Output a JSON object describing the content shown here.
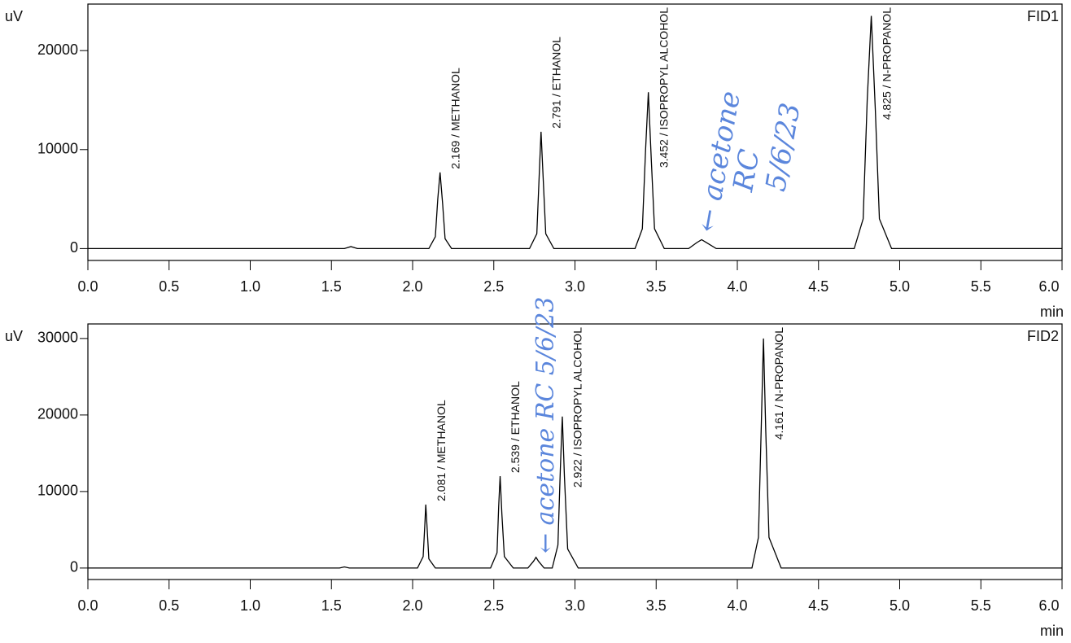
{
  "chart_data": [
    {
      "type": "line",
      "title": "FID1",
      "ylabel": "uV",
      "xlabel": "min",
      "color": "#000000",
      "xlim": [
        0,
        6
      ],
      "ylim": [
        -1200,
        24700
      ],
      "xticks": [
        {
          "value": 0,
          "label": "0.0"
        },
        0.5,
        {
          "value": 1,
          "label": "1.0"
        },
        1.5,
        {
          "value": 2,
          "label": "2.0"
        },
        2.5,
        {
          "value": 3,
          "label": "3.0"
        },
        3.5,
        {
          "value": 4,
          "label": "4.0"
        },
        4.5,
        {
          "value": 5,
          "label": "5.0"
        },
        5.5,
        {
          "value": 6,
          "label": "6.0"
        }
      ],
      "yticks": [
        0,
        10000,
        20000
      ],
      "x": [
        0,
        1.58,
        1.62,
        1.66,
        2.1,
        2.14,
        2.155,
        2.169,
        2.185,
        2.2,
        2.24,
        2.72,
        2.765,
        2.78,
        2.791,
        2.805,
        2.82,
        2.87,
        3.37,
        3.415,
        3.435,
        3.452,
        3.47,
        3.49,
        3.55,
        3.7,
        3.75,
        3.78,
        3.81,
        3.87,
        4.72,
        4.775,
        4.8,
        4.825,
        4.85,
        4.875,
        4.95,
        6
      ],
      "values": [
        0,
        0,
        200,
        0,
        0,
        1200,
        5000,
        7700,
        4500,
        1000,
        0,
        0,
        1500,
        7500,
        11800,
        6800,
        1500,
        0,
        0,
        2000,
        10000,
        15800,
        9000,
        2000,
        0,
        0,
        600,
        900,
        600,
        0,
        0,
        3000,
        15000,
        23500,
        14000,
        3000,
        0,
        0
      ],
      "peaks": [
        {
          "label": "2.169 / METHANOL",
          "x": 2.169,
          "y": 7700
        },
        {
          "label": "2.791 / ETHANOL",
          "x": 2.791,
          "y": 11800
        },
        {
          "label": "3.452 / ISOPROPYL ALCOHOL",
          "x": 3.452,
          "y": 15800
        },
        {
          "label": "4.825 / N-PROPANOL",
          "x": 4.825,
          "y": 23500
        }
      ],
      "notes": [
        "← acetone",
        "RC",
        "5/6/23"
      ]
    },
    {
      "type": "line",
      "title": "FID2",
      "ylabel": "uV",
      "xlabel": "min",
      "color": "#000000",
      "xlim": [
        0,
        6
      ],
      "ylim": [
        -1500,
        31900
      ],
      "xticks": [
        {
          "value": 0,
          "label": "0.0"
        },
        0.5,
        {
          "value": 1,
          "label": "1.0"
        },
        1.5,
        {
          "value": 2,
          "label": "2.0"
        },
        2.5,
        {
          "value": 3,
          "label": "3.0"
        },
        3.5,
        {
          "value": 4,
          "label": "4.0"
        },
        4.5,
        {
          "value": 5,
          "label": "5.0"
        },
        5.5,
        {
          "value": 6,
          "label": "6.0"
        }
      ],
      "yticks": [
        0,
        10000,
        20000,
        30000
      ],
      "x": [
        0,
        1.55,
        1.58,
        1.61,
        2.03,
        2.065,
        2.075,
        2.081,
        2.09,
        2.1,
        2.14,
        2.48,
        2.52,
        2.53,
        2.539,
        2.55,
        2.565,
        2.62,
        2.71,
        2.745,
        2.76,
        2.775,
        2.81,
        2.86,
        2.895,
        2.91,
        2.922,
        2.935,
        2.955,
        3.02,
        4.09,
        4.13,
        4.148,
        4.161,
        4.175,
        4.195,
        4.27,
        6
      ],
      "values": [
        0,
        0,
        150,
        0,
        0,
        1500,
        5500,
        8300,
        5000,
        1200,
        0,
        0,
        2000,
        8000,
        12000,
        7000,
        1500,
        0,
        0,
        900,
        1400,
        900,
        0,
        0,
        3000,
        13000,
        19800,
        12000,
        2500,
        0,
        0,
        4000,
        19000,
        30000,
        18000,
        4000,
        0,
        0
      ],
      "peaks": [
        {
          "label": "2.081 / METHANOL",
          "x": 2.081,
          "y": 8300
        },
        {
          "label": "2.539 / ETHANOL",
          "x": 2.539,
          "y": 12000
        },
        {
          "label": "2.922 / ISOPROPYL ALCOHOL",
          "x": 2.922,
          "y": 19800
        },
        {
          "label": "4.161 / N-PROPANOL",
          "x": 4.161,
          "y": 30000
        }
      ],
      "notes": [
        "← acetone RC 5/6/23"
      ]
    }
  ]
}
